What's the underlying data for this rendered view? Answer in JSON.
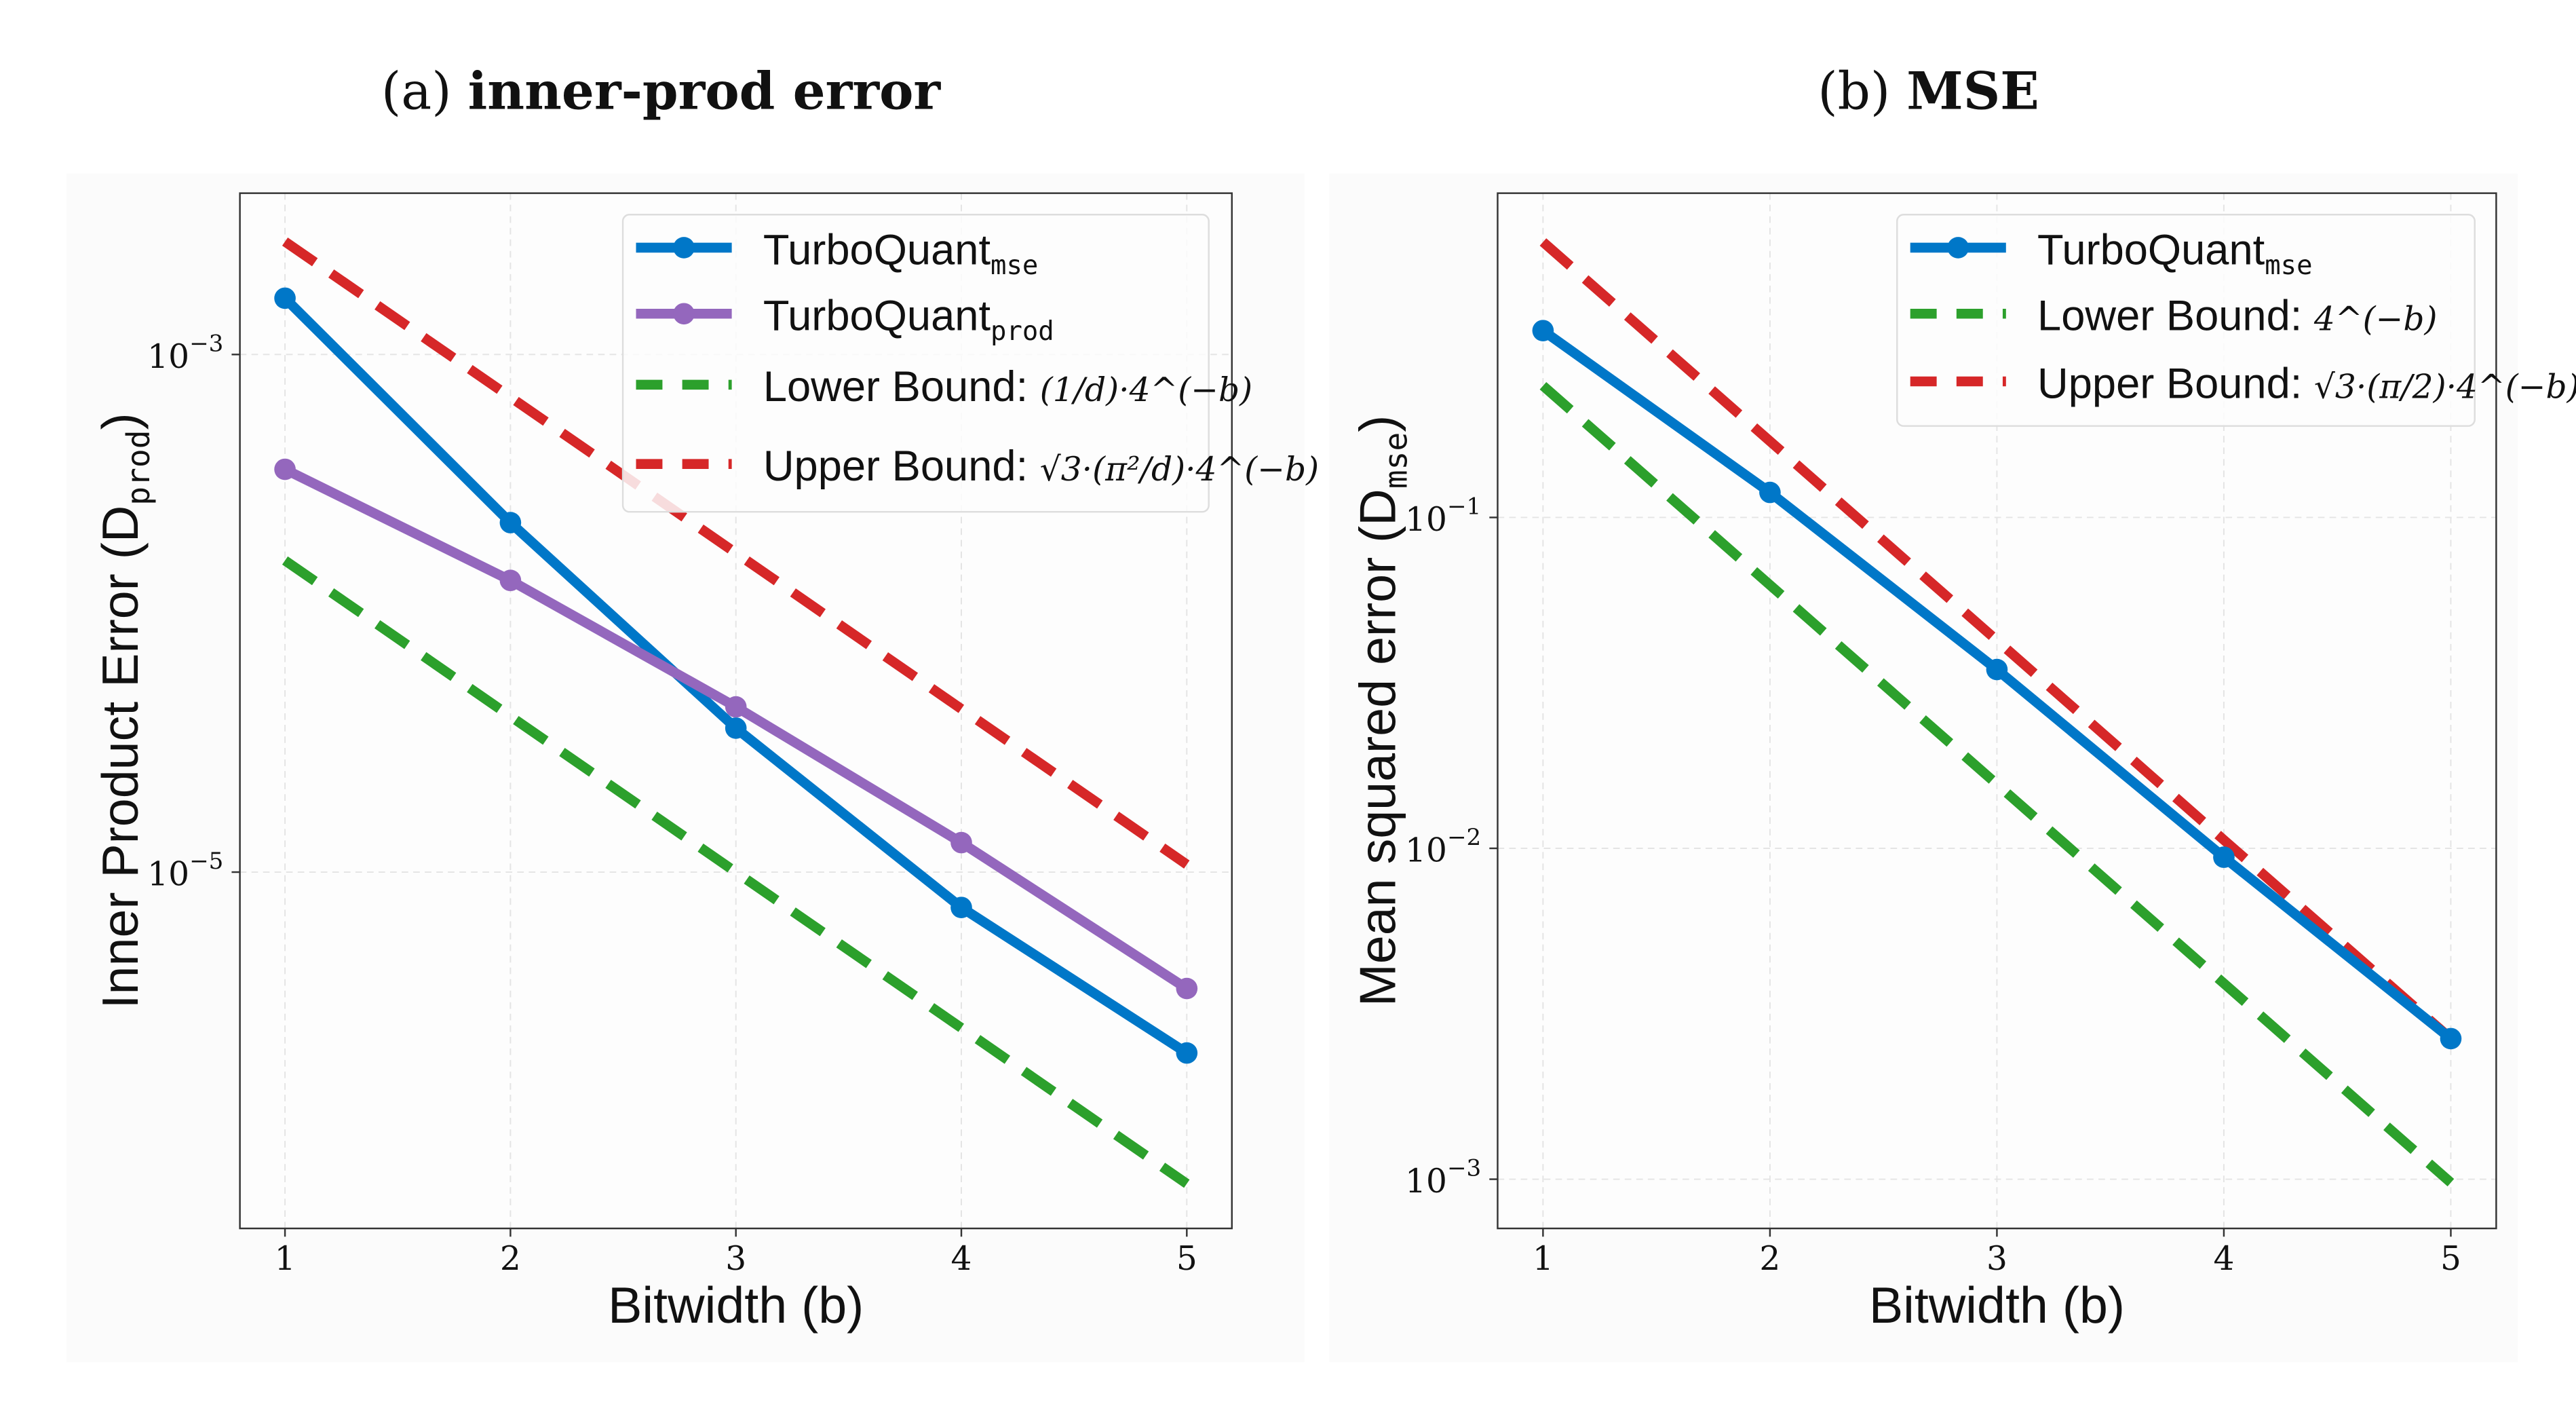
{
  "chart_data": [
    {
      "type": "line",
      "title_prefix": "(a)",
      "title": "inner-prod error",
      "xlabel": "Bitwidth (b)",
      "ylabel_main": "Inner Product Error (D",
      "ylabel_sub": "prod",
      "ylabel_end": ")",
      "yscale": "log",
      "ylim": [
        4.2e-07,
        0.0042
      ],
      "xlim": [
        0.8,
        5.2
      ],
      "x": [
        1,
        2,
        3,
        4,
        5
      ],
      "xticks": [
        "1",
        "2",
        "3",
        "4",
        "5"
      ],
      "yticks": [
        {
          "value": 0.001,
          "base": "10",
          "exp": "−3"
        },
        {
          "value": 1e-05,
          "base": "10",
          "exp": "−5"
        }
      ],
      "grid": true,
      "legend_placement": "top-right",
      "series": [
        {
          "name_main": "TurboQuant",
          "name_sub": "mse",
          "style": "solid-marker",
          "color": "#0077c8",
          "values": [
            0.00165,
            0.000224,
            3.6e-05,
            7.3e-06,
            2e-06
          ]
        },
        {
          "name_main": "TurboQuant",
          "name_sub": "prod",
          "style": "solid-marker",
          "color": "#9467bd",
          "values": [
            0.00036,
            0.000134,
            4.35e-05,
            1.3e-05,
            3.55e-06
          ]
        },
        {
          "name_main": "Lower Bound:",
          "formula": "(1/d)·4^(−b)",
          "style": "dashed",
          "color": "#2ca02c",
          "values": [
            0.00016,
            4e-05,
            1e-05,
            2.5e-06,
            6.25e-07
          ]
        },
        {
          "name_main": "Upper Bound:",
          "formula": "√3·(π²/d)·4^(−b)",
          "style": "dashed",
          "color": "#d62728",
          "values": [
            0.00273,
            0.000684,
            0.000171,
            4.27e-05,
            1.07e-05
          ]
        }
      ]
    },
    {
      "type": "line",
      "title_prefix": "(b)",
      "title": "MSE",
      "xlabel": "Bitwidth (b)",
      "ylabel_main": "Mean squared error (D",
      "ylabel_sub": "mse",
      "ylabel_end": ")",
      "yscale": "log",
      "ylim": [
        0.00071,
        0.955
      ],
      "xlim": [
        0.8,
        5.2
      ],
      "x": [
        1,
        2,
        3,
        4,
        5
      ],
      "xticks": [
        "1",
        "2",
        "3",
        "4",
        "5"
      ],
      "yticks": [
        {
          "value": 0.1,
          "base": "10",
          "exp": "−1"
        },
        {
          "value": 0.01,
          "base": "10",
          "exp": "−2"
        },
        {
          "value": 0.001,
          "base": "10",
          "exp": "−3"
        }
      ],
      "grid": true,
      "legend_placement": "top-right",
      "series": [
        {
          "name_main": "TurboQuant",
          "name_sub": "mse",
          "style": "solid-marker",
          "color": "#0077c8",
          "values": [
            0.367,
            0.119,
            0.0347,
            0.0094,
            0.00266
          ]
        },
        {
          "name_main": "Lower Bound:",
          "formula": "4^(−b)",
          "style": "dashed",
          "color": "#2ca02c",
          "values": [
            0.25,
            0.0625,
            0.015625,
            0.00390625,
            0.0009765625
          ]
        },
        {
          "name_main": "Upper Bound:",
          "formula": "√3·(π/2)·4^(−b)",
          "style": "dashed",
          "color": "#d62728",
          "values": [
            0.68,
            0.17,
            0.0425,
            0.0106,
            0.00266
          ]
        }
      ]
    }
  ]
}
